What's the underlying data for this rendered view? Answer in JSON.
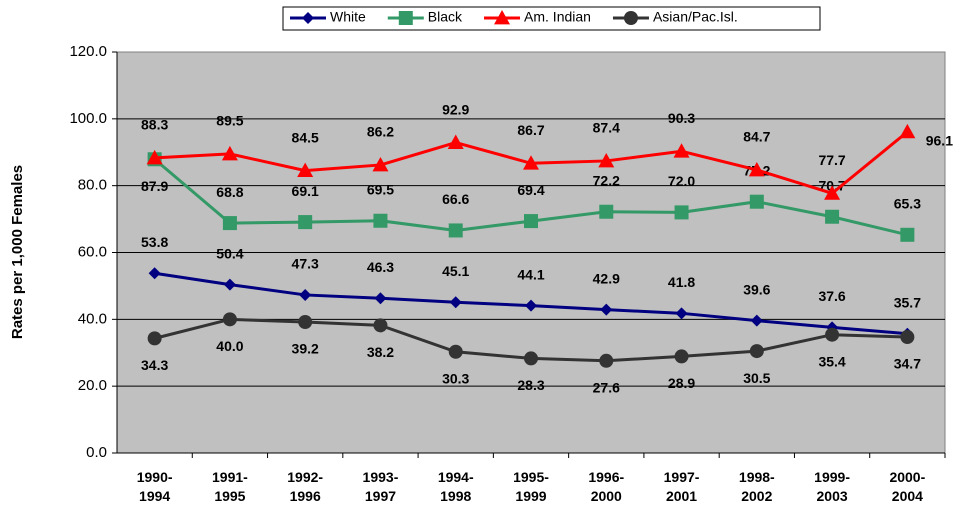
{
  "chart_data": {
    "type": "line",
    "y_label": "Rates per 1,000 Females",
    "categories": [
      "1990-1994",
      "1991-1995",
      "1992-1996",
      "1993-1997",
      "1994-1998",
      "1995-1999",
      "1996-2000",
      "1997-2001",
      "1998-2002",
      "1999-2003",
      "2000-2004"
    ],
    "ylim": [
      0,
      120
    ],
    "yticks": [
      {
        "value": 0,
        "label": "0.0"
      },
      {
        "value": 20,
        "label": "20.0"
      },
      {
        "value": 40,
        "label": "40.0"
      },
      {
        "value": 60,
        "label": "60.0"
      },
      {
        "value": 80,
        "label": "80.0"
      },
      {
        "value": 100,
        "label": "100.0"
      },
      {
        "value": 120,
        "label": "120.0"
      }
    ],
    "grid": true,
    "legend": "top",
    "series": [
      {
        "name": "White",
        "color": "#000080",
        "marker": "diamond",
        "values": [
          53.8,
          50.4,
          47.3,
          46.3,
          45.1,
          44.1,
          42.9,
          41.8,
          39.6,
          37.6,
          35.7
        ],
        "value_labels": [
          "53.8",
          "50.4",
          "47.3",
          "46.3",
          "45.1",
          "44.1",
          "42.9",
          "41.8",
          "39.6",
          "37.6",
          "35.7"
        ]
      },
      {
        "name": "Black",
        "color": "#339966",
        "marker": "square",
        "values": [
          87.9,
          68.8,
          69.1,
          69.5,
          66.6,
          69.4,
          72.2,
          72.0,
          75.2,
          70.7,
          65.3
        ],
        "value_labels": [
          "87.9",
          "68.8",
          "69.1",
          "69.5",
          "66.6",
          "69.4",
          "72.2",
          "72.0",
          "75.2",
          "70.7",
          "65.3"
        ]
      },
      {
        "name": "Am. Indian",
        "color": "#ff0000",
        "marker": "triangle",
        "values": [
          88.3,
          89.5,
          84.5,
          86.2,
          92.9,
          86.7,
          87.4,
          90.3,
          84.7,
          77.7,
          96.1
        ],
        "value_labels": [
          "88.3",
          "89.5",
          "84.5",
          "86.2",
          "92.9",
          "86.7",
          "87.4",
          "90.3",
          "84.7",
          "77.7",
          "96.1"
        ]
      },
      {
        "name": "Asian/Pac.Isl.",
        "color": "#333333",
        "marker": "circle",
        "values": [
          34.3,
          40.0,
          39.2,
          38.2,
          30.3,
          28.3,
          27.6,
          28.9,
          30.5,
          35.4,
          34.7
        ],
        "value_labels": [
          "34.3",
          "40.0",
          "39.2",
          "38.2",
          "30.3",
          "28.3",
          "27.6",
          "28.9",
          "30.5",
          "35.4",
          "34.7"
        ]
      }
    ]
  }
}
